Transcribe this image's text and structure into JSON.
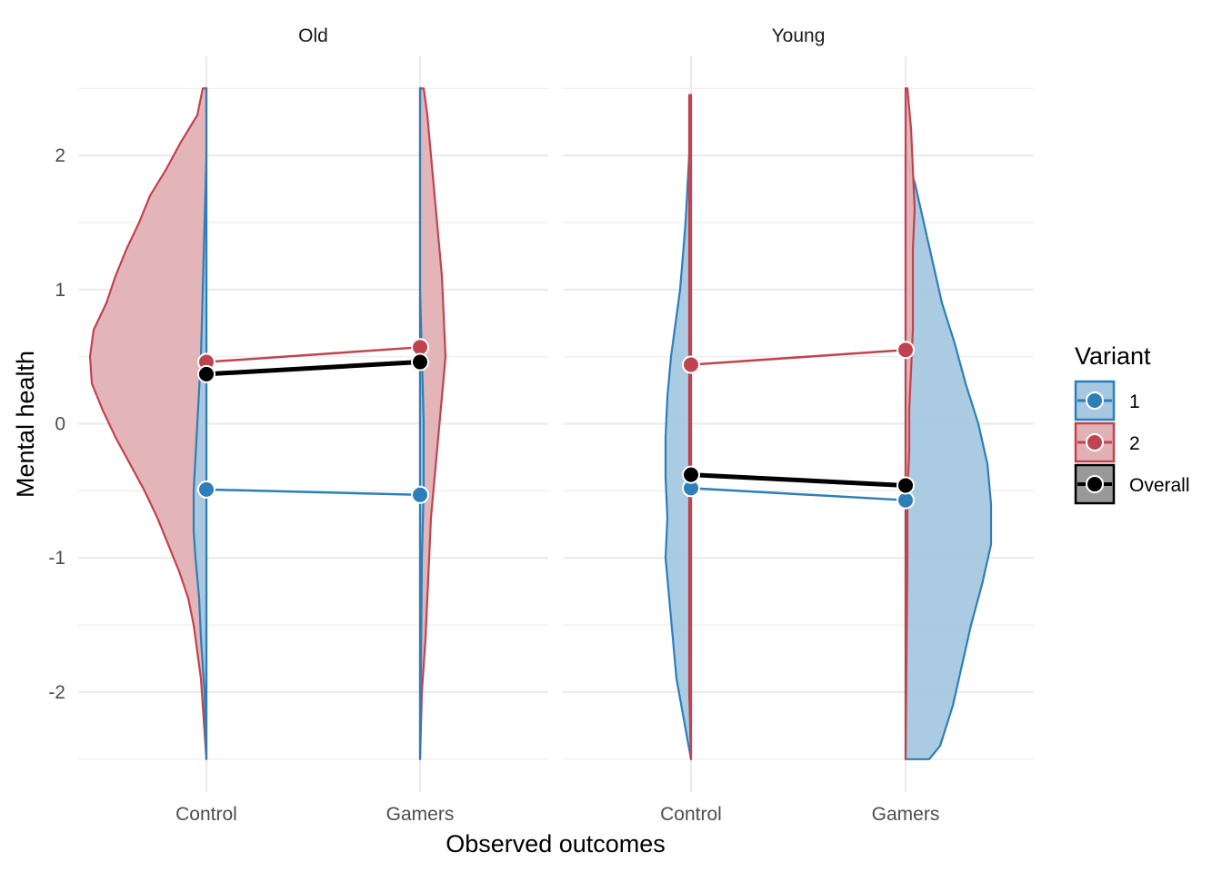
{
  "chart_data": {
    "type": "violin",
    "facets": [
      "Old",
      "Young"
    ],
    "categories": [
      "Control",
      "Gamers"
    ],
    "xlabel": "Observed outcomes",
    "ylabel": "Mental health",
    "ylim": [
      -2.7,
      2.75
    ],
    "yticks": [
      "-2",
      "-1",
      "0",
      "1",
      "2"
    ],
    "legend": {
      "title": "Variant",
      "position": "right",
      "entries": [
        "1",
        "2",
        "Overall"
      ]
    },
    "colors": {
      "variant1": "#2c7fb8",
      "variant1_fill": "#a6c8e0",
      "variant2": "#c0434f",
      "variant2_fill": "#e2b1b5",
      "overall": "#000000",
      "overall_fill": "#999999",
      "grid": "#ebebeb"
    },
    "grid": true,
    "series": [
      {
        "name": "1",
        "points": [
          {
            "facet": "Old",
            "x": "Control",
            "y": -0.49
          },
          {
            "facet": "Old",
            "x": "Gamers",
            "y": -0.53
          },
          {
            "facet": "Young",
            "x": "Control",
            "y": -0.48
          },
          {
            "facet": "Young",
            "x": "Gamers",
            "y": -0.57
          }
        ]
      },
      {
        "name": "2",
        "points": [
          {
            "facet": "Old",
            "x": "Control",
            "y": 0.46
          },
          {
            "facet": "Old",
            "x": "Gamers",
            "y": 0.57
          },
          {
            "facet": "Young",
            "x": "Control",
            "y": 0.44
          },
          {
            "facet": "Young",
            "x": "Gamers",
            "y": 0.55
          }
        ]
      },
      {
        "name": "Overall",
        "points": [
          {
            "facet": "Old",
            "x": "Control",
            "y": 0.37
          },
          {
            "facet": "Old",
            "x": "Gamers",
            "y": 0.46
          },
          {
            "facet": "Young",
            "x": "Control",
            "y": -0.38
          },
          {
            "facet": "Young",
            "x": "Gamers",
            "y": -0.46
          }
        ]
      }
    ],
    "violins": [
      {
        "facet": "Old",
        "x": "Control",
        "variant": "2",
        "profile": [
          [
            2.5,
            0.02
          ],
          [
            2.3,
            0.05
          ],
          [
            2.1,
            0.14
          ],
          [
            1.9,
            0.22
          ],
          [
            1.7,
            0.31
          ],
          [
            1.5,
            0.37
          ],
          [
            1.3,
            0.44
          ],
          [
            1.1,
            0.5
          ],
          [
            0.9,
            0.55
          ],
          [
            0.7,
            0.62
          ],
          [
            0.5,
            0.64
          ],
          [
            0.3,
            0.63
          ],
          [
            0.1,
            0.57
          ],
          [
            -0.1,
            0.5
          ],
          [
            -0.3,
            0.42
          ],
          [
            -0.5,
            0.34
          ],
          [
            -0.7,
            0.27
          ],
          [
            -0.9,
            0.21
          ],
          [
            -1.1,
            0.15
          ],
          [
            -1.3,
            0.1
          ],
          [
            -1.5,
            0.07
          ],
          [
            -1.7,
            0.05
          ],
          [
            -1.9,
            0.03
          ],
          [
            -2.1,
            0.02
          ],
          [
            -2.3,
            0.01
          ],
          [
            -2.5,
            0.0
          ]
        ]
      },
      {
        "facet": "Old",
        "x": "Control",
        "variant": "1",
        "profile": [
          [
            2.5,
            0.0
          ],
          [
            2.0,
            0.0
          ],
          [
            1.5,
            0.01
          ],
          [
            1.0,
            0.02
          ],
          [
            0.5,
            0.03
          ],
          [
            0.0,
            0.05
          ],
          [
            -0.5,
            0.07
          ],
          [
            -0.8,
            0.07
          ],
          [
            -1.0,
            0.06
          ],
          [
            -1.3,
            0.04
          ],
          [
            -1.6,
            0.03
          ],
          [
            -2.0,
            0.01
          ],
          [
            -2.5,
            0.0
          ]
        ]
      },
      {
        "facet": "Old",
        "x": "Gamers",
        "variant": "2",
        "profile": [
          [
            2.5,
            0.02
          ],
          [
            2.3,
            0.04
          ],
          [
            2.0,
            0.06
          ],
          [
            1.7,
            0.08
          ],
          [
            1.4,
            0.1
          ],
          [
            1.1,
            0.12
          ],
          [
            0.8,
            0.13
          ],
          [
            0.5,
            0.14
          ],
          [
            0.2,
            0.12
          ],
          [
            -0.1,
            0.1
          ],
          [
            -0.4,
            0.08
          ],
          [
            -0.7,
            0.06
          ],
          [
            -1.0,
            0.05
          ],
          [
            -1.3,
            0.04
          ],
          [
            -1.6,
            0.03
          ],
          [
            -2.0,
            0.01
          ],
          [
            -2.5,
            0.0
          ]
        ]
      },
      {
        "facet": "Old",
        "x": "Gamers",
        "variant": "1",
        "profile": [
          [
            2.5,
            0.0
          ],
          [
            1.0,
            0.0
          ],
          [
            0.5,
            0.01
          ],
          [
            0.0,
            0.02
          ],
          [
            -0.5,
            0.02
          ],
          [
            -1.0,
            0.01
          ],
          [
            -2.5,
            0.0
          ]
        ]
      },
      {
        "facet": "Young",
        "x": "Control",
        "variant": "1",
        "profile": [
          [
            2.45,
            0.0
          ],
          [
            2.0,
            0.01
          ],
          [
            1.5,
            0.03
          ],
          [
            1.0,
            0.06
          ],
          [
            0.8,
            0.08
          ],
          [
            0.5,
            0.11
          ],
          [
            0.2,
            0.13
          ],
          [
            -0.1,
            0.14
          ],
          [
            -0.4,
            0.14
          ],
          [
            -0.7,
            0.13
          ],
          [
            -1.0,
            0.14
          ],
          [
            -1.3,
            0.12
          ],
          [
            -1.6,
            0.1
          ],
          [
            -1.9,
            0.08
          ],
          [
            -2.2,
            0.04
          ],
          [
            -2.5,
            0.0
          ]
        ]
      },
      {
        "facet": "Young",
        "x": "Control",
        "variant": "2",
        "profile": [
          [
            2.45,
            0.01
          ],
          [
            2.0,
            0.01
          ],
          [
            1.0,
            0.01
          ],
          [
            0.0,
            0.01
          ],
          [
            -1.0,
            0.01
          ],
          [
            -2.0,
            0.01
          ],
          [
            -2.5,
            0.0
          ]
        ]
      },
      {
        "facet": "Young",
        "x": "Gamers",
        "variant": "1",
        "profile": [
          [
            2.0,
            0.0
          ],
          [
            1.8,
            0.05
          ],
          [
            1.5,
            0.1
          ],
          [
            1.2,
            0.15
          ],
          [
            0.9,
            0.2
          ],
          [
            0.6,
            0.27
          ],
          [
            0.3,
            0.33
          ],
          [
            0.0,
            0.4
          ],
          [
            -0.3,
            0.45
          ],
          [
            -0.6,
            0.47
          ],
          [
            -0.9,
            0.47
          ],
          [
            -1.2,
            0.42
          ],
          [
            -1.5,
            0.36
          ],
          [
            -1.8,
            0.31
          ],
          [
            -2.1,
            0.26
          ],
          [
            -2.4,
            0.19
          ],
          [
            -2.5,
            0.13
          ]
        ]
      },
      {
        "facet": "Young",
        "x": "Gamers",
        "variant": "2",
        "profile": [
          [
            2.5,
            0.01
          ],
          [
            2.2,
            0.03
          ],
          [
            1.9,
            0.04
          ],
          [
            1.6,
            0.05
          ],
          [
            1.3,
            0.04
          ],
          [
            1.0,
            0.04
          ],
          [
            0.7,
            0.04
          ],
          [
            0.4,
            0.03
          ],
          [
            0.1,
            0.02
          ],
          [
            -0.2,
            0.02
          ],
          [
            -0.5,
            0.01
          ],
          [
            -1.0,
            0.01
          ],
          [
            -2.5,
            0.0
          ]
        ]
      }
    ]
  }
}
